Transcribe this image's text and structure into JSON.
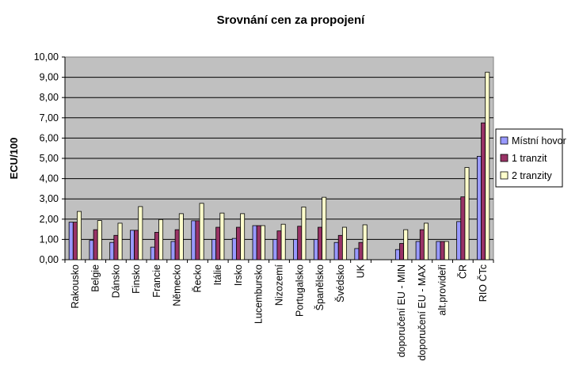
{
  "chart_data": {
    "type": "bar",
    "title": "Srovnání cen za propojení",
    "ylabel": "ECU/100",
    "xlabel": "",
    "ylim": [
      0,
      10
    ],
    "ytick_step": 1,
    "ytick_labels": [
      "0,00",
      "1,00",
      "2,00",
      "3,00",
      "4,00",
      "5,00",
      "6,00",
      "7,00",
      "8,00",
      "9,00",
      "10,00"
    ],
    "grid": true,
    "legend_position": "right",
    "categories": [
      "Rakousko",
      "Belgie",
      "Dánsko",
      "Finsko",
      "Francie",
      "Německo",
      "Řecko",
      "Itálie",
      "Irsko",
      "Lucembursko",
      "Nizozemí",
      "Portugalsko",
      "Španělsko",
      "Švédsko",
      "UK",
      "",
      "doporučení EU - MIN",
      "doporučení EU - MAX",
      "alt.provideři",
      "ČR",
      "RIO ČTc"
    ],
    "series": [
      {
        "name": "Místní hovor",
        "color": "#9999ff",
        "values": [
          1.85,
          0.95,
          0.85,
          1.45,
          0.62,
          0.9,
          1.92,
          1.0,
          1.05,
          1.68,
          1.0,
          1.0,
          1.0,
          0.85,
          0.55,
          null,
          0.5,
          0.9,
          0.9,
          1.88,
          5.1
        ]
      },
      {
        "name": "1 tranzit",
        "color": "#993366",
        "values": [
          1.85,
          1.48,
          1.2,
          1.45,
          1.35,
          1.48,
          1.92,
          1.6,
          1.6,
          1.68,
          1.42,
          1.65,
          1.6,
          1.2,
          0.85,
          null,
          0.8,
          1.48,
          0.9,
          3.1,
          6.75
        ]
      },
      {
        "name": "2 tranzity",
        "color": "#ffffcc",
        "values": [
          2.38,
          1.93,
          1.8,
          2.62,
          1.98,
          2.27,
          2.78,
          2.3,
          2.27,
          1.68,
          1.75,
          2.6,
          3.08,
          1.6,
          1.72,
          null,
          1.48,
          1.8,
          0.9,
          4.55,
          9.25
        ]
      }
    ]
  }
}
